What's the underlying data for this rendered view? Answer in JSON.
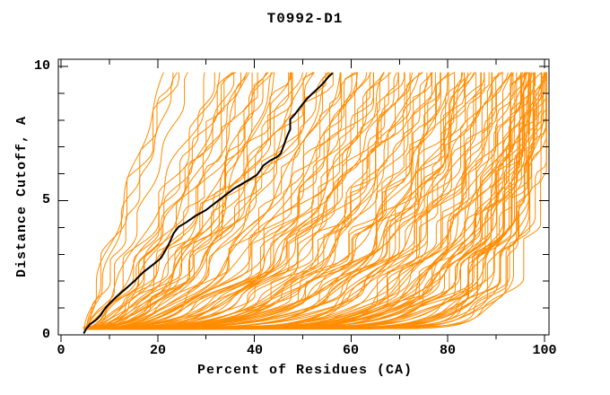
{
  "colors": {
    "model_orange": "#ff8c00",
    "highlight_black": "#000000",
    "axis": "#000000",
    "background": "#ffffff"
  },
  "chart_data": {
    "type": "line",
    "title": "T0992-D1",
    "xlabel": "Percent of Residues (CA)",
    "ylabel": "Distance Cutoff, A",
    "xlim": [
      0,
      100
    ],
    "ylim": [
      0,
      10
    ],
    "x_ticks": [
      0,
      20,
      40,
      60,
      80,
      100
    ],
    "x_minor_ticks": [
      10,
      30,
      50,
      70,
      90
    ],
    "y_ticks": [
      0,
      5,
      10
    ],
    "y_minor_ticks": [
      1,
      2,
      3,
      4,
      6,
      7,
      8,
      9
    ],
    "x_tick_labels": [
      "0",
      "20",
      "40",
      "60",
      "80",
      "100"
    ],
    "y_tick_labels": [
      "0",
      "5",
      "10"
    ],
    "grid": "off",
    "legend": "none",
    "series": [
      {
        "name": "highlighted-model",
        "color": "#000000",
        "points": [
          [
            4.7,
            0.05
          ],
          [
            5.2,
            0.22
          ],
          [
            6.0,
            0.39
          ],
          [
            7.3,
            0.56
          ],
          [
            8.2,
            0.73
          ],
          [
            8.8,
            0.9
          ],
          [
            9.5,
            1.07
          ],
          [
            11.4,
            1.41
          ],
          [
            13.3,
            1.71
          ],
          [
            15.1,
            1.99
          ],
          [
            17.0,
            2.33
          ],
          [
            19.4,
            2.67
          ],
          [
            20.7,
            2.87
          ],
          [
            22.2,
            3.34
          ],
          [
            22.8,
            3.58
          ],
          [
            23.3,
            3.79
          ],
          [
            24.3,
            4.02
          ],
          [
            25.9,
            4.19
          ],
          [
            27.8,
            4.43
          ],
          [
            29.9,
            4.64
          ],
          [
            32.8,
            5.04
          ],
          [
            35.8,
            5.45
          ],
          [
            39.0,
            5.79
          ],
          [
            40.5,
            5.96
          ],
          [
            41.2,
            6.13
          ],
          [
            41.8,
            6.3
          ],
          [
            43.3,
            6.5
          ],
          [
            44.8,
            6.64
          ],
          [
            45.5,
            6.77
          ],
          [
            46.1,
            7.08
          ],
          [
            46.8,
            7.42
          ],
          [
            47.4,
            7.66
          ],
          [
            47.4,
            8.03
          ],
          [
            48.3,
            8.2
          ],
          [
            49.6,
            8.51
          ],
          [
            50.8,
            8.78
          ],
          [
            52.1,
            9.01
          ],
          [
            53.4,
            9.22
          ],
          [
            54.3,
            9.39
          ],
          [
            54.9,
            9.52
          ],
          [
            55.4,
            9.63
          ],
          [
            56.2,
            9.76
          ]
        ]
      },
      {
        "name": "model-curves",
        "color": "#ff8c00",
        "count": 148,
        "y_start": 0.2,
        "y_end": 9.78,
        "x_max": 100.4,
        "curve_params_format": [
          "percent_at_start",
          "percent_at_top_cutoff",
          "shape_exponent"
        ],
        "curves": [
          [
            5.0,
            21.5,
            1.05
          ],
          [
            5.2,
            22.3,
            0.97
          ],
          [
            4.8,
            23.0,
            1.1
          ],
          [
            5.1,
            24.2,
            0.9
          ],
          [
            5.3,
            27.0,
            0.84
          ],
          [
            4.8,
            31.5,
            0.78
          ],
          [
            5.5,
            32.2,
            0.7
          ],
          [
            5.0,
            33.0,
            0.82
          ],
          [
            5.6,
            33.8,
            0.66
          ],
          [
            4.9,
            34.5,
            0.74
          ],
          [
            5.2,
            35.2,
            0.6
          ],
          [
            5.7,
            36.0,
            0.72
          ],
          [
            5.1,
            36.8,
            0.64
          ],
          [
            5.4,
            37.4,
            0.58
          ],
          [
            5.0,
            38.0,
            0.68
          ],
          [
            4.7,
            38.6,
            0.52
          ],
          [
            5.9,
            39.3,
            0.44
          ],
          [
            5.2,
            40.1,
            0.6
          ],
          [
            4.8,
            40.9,
            0.38
          ],
          [
            5.5,
            41.7,
            0.55
          ],
          [
            5.0,
            42.4,
            0.47
          ],
          [
            5.8,
            43.2,
            0.63
          ],
          [
            4.6,
            44.0,
            0.4
          ],
          [
            5.3,
            44.8,
            0.5
          ],
          [
            5.6,
            45.5,
            0.58
          ],
          [
            4.9,
            46.3,
            0.36
          ],
          [
            5.1,
            47.1,
            0.45
          ],
          [
            5.7,
            47.9,
            0.54
          ],
          [
            4.8,
            48.7,
            0.42
          ],
          [
            5.4,
            49.4,
            0.62
          ],
          [
            5.0,
            50.2,
            0.39
          ],
          [
            5.9,
            51.0,
            0.49
          ],
          [
            5.2,
            51.8,
            0.57
          ],
          [
            4.7,
            52.6,
            0.35
          ],
          [
            5.5,
            53.4,
            0.46
          ],
          [
            5.1,
            54.2,
            0.53
          ],
          [
            5.8,
            54.9,
            0.41
          ],
          [
            4.8,
            55.6,
            0.3
          ],
          [
            5.3,
            56.2,
            0.42
          ],
          [
            5.6,
            56.9,
            0.24
          ],
          [
            4.9,
            57.5,
            0.36
          ],
          [
            5.1,
            58.2,
            0.45
          ],
          [
            5.7,
            58.8,
            0.28
          ],
          [
            4.6,
            59.5,
            0.38
          ],
          [
            5.2,
            60.1,
            0.22
          ],
          [
            5.5,
            60.8,
            0.33
          ],
          [
            5.0,
            61.4,
            0.44
          ],
          [
            5.8,
            62.1,
            0.26
          ],
          [
            4.7,
            62.7,
            0.37
          ],
          [
            5.3,
            63.4,
            0.21
          ],
          [
            5.6,
            64.0,
            0.31
          ],
          [
            4.9,
            64.7,
            0.43
          ],
          [
            5.1,
            65.3,
            0.25
          ],
          [
            5.9,
            66.0,
            0.35
          ],
          [
            4.8,
            66.6,
            0.2
          ],
          [
            5.4,
            67.3,
            0.3
          ],
          [
            5.0,
            67.9,
            0.4
          ],
          [
            5.7,
            68.6,
            0.23
          ],
          [
            4.6,
            69.2,
            0.34
          ],
          [
            5.2,
            69.9,
            0.27
          ],
          [
            5.5,
            70.5,
            0.38
          ],
          [
            5.1,
            71.2,
            0.22
          ],
          [
            5.8,
            71.8,
            0.32
          ],
          [
            4.9,
            72.5,
            0.41
          ],
          [
            5.3,
            73.1,
            0.24
          ],
          [
            5.6,
            73.8,
            0.29
          ],
          [
            5.0,
            74.4,
            0.36
          ],
          [
            4.7,
            74.7,
            0.21
          ],
          [
            5.4,
            75.0,
            0.27
          ],
          [
            5.1,
            75.5,
            0.16
          ],
          [
            5.6,
            76.0,
            0.26
          ],
          [
            4.8,
            76.5,
            0.12
          ],
          [
            5.3,
            77.0,
            0.22
          ],
          [
            5.0,
            77.4,
            0.3
          ],
          [
            5.7,
            77.9,
            0.14
          ],
          [
            4.9,
            78.4,
            0.24
          ],
          [
            5.4,
            78.9,
            0.18
          ],
          [
            5.2,
            79.4,
            0.28
          ],
          [
            5.8,
            79.8,
            0.11
          ],
          [
            4.7,
            80.3,
            0.21
          ],
          [
            5.5,
            80.8,
            0.15
          ],
          [
            5.0,
            81.3,
            0.25
          ],
          [
            5.3,
            81.8,
            0.1
          ],
          [
            5.6,
            82.2,
            0.2
          ],
          [
            4.8,
            82.7,
            0.29
          ],
          [
            5.1,
            83.2,
            0.13
          ],
          [
            5.9,
            83.7,
            0.23
          ],
          [
            5.2,
            84.2,
            0.17
          ],
          [
            4.6,
            84.6,
            0.27
          ],
          [
            5.4,
            85.1,
            0.12
          ],
          [
            5.0,
            85.6,
            0.22
          ],
          [
            5.7,
            86.1,
            0.16
          ],
          [
            4.9,
            86.6,
            0.26
          ],
          [
            5.3,
            87.0,
            0.1
          ],
          [
            5.5,
            87.5,
            0.19
          ],
          [
            5.1,
            88.0,
            0.28
          ],
          [
            5.8,
            88.5,
            0.14
          ],
          [
            4.7,
            89.0,
            0.24
          ],
          [
            5.2,
            89.4,
            0.11
          ],
          [
            5.6,
            89.9,
            0.21
          ],
          [
            5.0,
            90.4,
            0.15
          ],
          [
            5.4,
            90.9,
            0.25
          ],
          [
            4.8,
            91.4,
            0.13
          ],
          [
            5.7,
            91.8,
            0.18
          ],
          [
            5.1,
            92.3,
            0.23
          ],
          [
            5.3,
            92.8,
            0.1
          ],
          [
            5.9,
            93.0,
            0.17
          ],
          [
            5.0,
            93.2,
            0.08
          ],
          [
            5.4,
            93.4,
            0.14
          ],
          [
            4.8,
            93.6,
            0.06
          ],
          [
            5.6,
            93.8,
            0.12
          ],
          [
            5.1,
            94.0,
            0.17
          ],
          [
            5.3,
            94.2,
            0.07
          ],
          [
            5.7,
            94.4,
            0.11
          ],
          [
            4.9,
            94.6,
            0.15
          ],
          [
            5.2,
            94.8,
            0.06
          ],
          [
            5.5,
            95.0,
            0.1
          ],
          [
            5.0,
            95.2,
            0.16
          ],
          [
            5.8,
            95.4,
            0.08
          ],
          [
            4.7,
            95.6,
            0.13
          ],
          [
            5.3,
            95.8,
            0.05
          ],
          [
            5.6,
            96.0,
            0.11
          ],
          [
            5.1,
            96.2,
            0.15
          ],
          [
            4.9,
            96.4,
            0.07
          ],
          [
            5.4,
            96.6,
            0.12
          ],
          [
            5.2,
            96.8,
            0.17
          ],
          [
            5.7,
            97.0,
            0.06
          ],
          [
            5.0,
            97.2,
            0.1
          ],
          [
            5.5,
            97.4,
            0.14
          ],
          [
            4.8,
            97.6,
            0.08
          ],
          [
            5.3,
            97.8,
            0.12
          ],
          [
            5.1,
            98.0,
            0.05
          ],
          [
            5.9,
            98.2,
            0.1
          ],
          [
            5.2,
            98.4,
            0.15
          ],
          [
            4.6,
            98.6,
            0.07
          ],
          [
            5.6,
            98.8,
            0.11
          ],
          [
            5.0,
            99.0,
            0.16
          ],
          [
            5.4,
            99.2,
            0.06
          ],
          [
            5.1,
            99.4,
            0.09
          ],
          [
            5.7,
            99.6,
            0.13
          ],
          [
            4.9,
            99.8,
            0.05
          ],
          [
            5.3,
            100.0,
            0.08
          ],
          [
            5.5,
            100.1,
            0.12
          ],
          [
            5.0,
            100.2,
            0.06
          ],
          [
            5.2,
            100.3,
            0.09
          ],
          [
            5.8,
            100.4,
            0.05
          ],
          [
            5.1,
            100.4,
            0.07
          ],
          [
            4.8,
            100.3,
            0.1
          ]
        ]
      }
    ]
  }
}
